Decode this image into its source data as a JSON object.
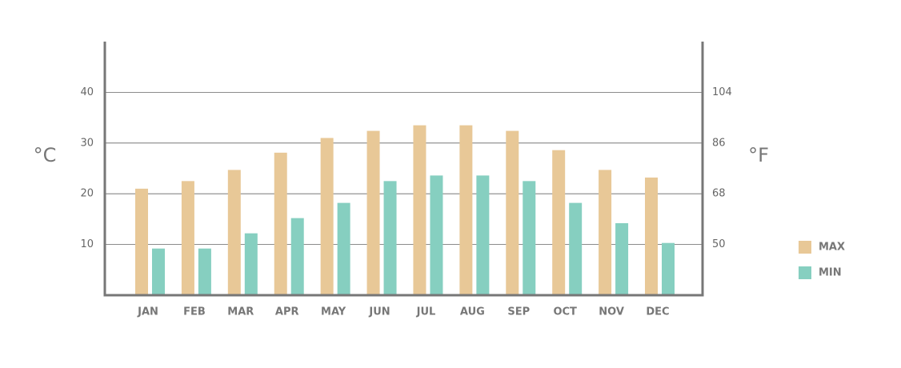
{
  "chart_data": {
    "type": "bar",
    "y_label": "°C",
    "y2_label": "°F",
    "categories": [
      "JAN",
      "FEB",
      "MAR",
      "APR",
      "MAY",
      "JUN",
      "JUL",
      "AUG",
      "SEP",
      "OCT",
      "NOV",
      "DEC"
    ],
    "series": [
      {
        "name": "MAX",
        "color": "#e8c897",
        "values": [
          21,
          22.5,
          24.7,
          28.1,
          31,
          32.4,
          33.5,
          33.5,
          32.4,
          28.6,
          24.7,
          23.2
        ]
      },
      {
        "name": "MIN",
        "color": "#86cfc0",
        "values": [
          9.2,
          9.2,
          12.2,
          15.2,
          18.2,
          22.5,
          23.6,
          23.6,
          22.5,
          18.2,
          14.2,
          10.3
        ]
      }
    ],
    "ylim": [
      0,
      50
    ],
    "yticks": [
      10,
      20,
      30,
      40
    ],
    "y2lim": [
      32,
      122
    ],
    "y2ticks": [
      50,
      68,
      86,
      104
    ],
    "grid": true
  }
}
